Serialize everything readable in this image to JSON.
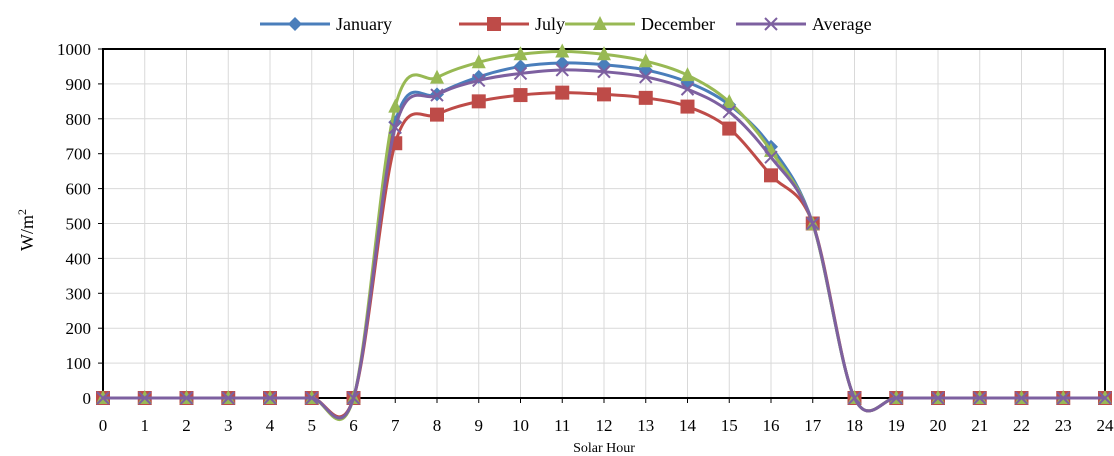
{
  "chart_data": {
    "type": "line",
    "title": "",
    "xlabel": "Solar Hour",
    "ylabel": "W/m",
    "ylabel_sup": "2",
    "x": [
      0,
      1,
      2,
      3,
      4,
      5,
      6,
      7,
      8,
      9,
      10,
      11,
      12,
      13,
      14,
      15,
      16,
      17,
      18,
      19,
      20,
      21,
      22,
      23,
      24
    ],
    "xlim": [
      0,
      24
    ],
    "ylim": [
      0,
      1000
    ],
    "yticks": [
      0,
      100,
      200,
      300,
      400,
      500,
      600,
      700,
      800,
      900,
      1000
    ],
    "grid": true,
    "legend_position": "top",
    "series": [
      {
        "name": "January",
        "color": "#4a7ebb",
        "marker": "diamond",
        "values": [
          0,
          0,
          0,
          0,
          0,
          0,
          0,
          790,
          870,
          920,
          950,
          960,
          955,
          940,
          905,
          840,
          720,
          500,
          0,
          0,
          0,
          0,
          0,
          0,
          0
        ]
      },
      {
        "name": "July",
        "color": "#be4b48",
        "marker": "square",
        "values": [
          0,
          0,
          0,
          0,
          0,
          0,
          0,
          730,
          812,
          850,
          868,
          875,
          870,
          860,
          835,
          772,
          638,
          500,
          0,
          0,
          0,
          0,
          0,
          0,
          0
        ]
      },
      {
        "name": "December",
        "color": "#98b954",
        "marker": "triangle",
        "values": [
          0,
          0,
          0,
          0,
          0,
          0,
          0,
          835,
          918,
          962,
          985,
          993,
          985,
          965,
          925,
          848,
          708,
          498,
          0,
          0,
          0,
          0,
          0,
          0,
          0
        ]
      },
      {
        "name": "Average",
        "color": "#7d60a0",
        "marker": "x",
        "values": [
          0,
          0,
          0,
          0,
          0,
          0,
          0,
          775,
          868,
          910,
          930,
          940,
          935,
          920,
          885,
          820,
          690,
          500,
          0,
          0,
          0,
          0,
          0,
          0,
          0
        ]
      }
    ]
  }
}
